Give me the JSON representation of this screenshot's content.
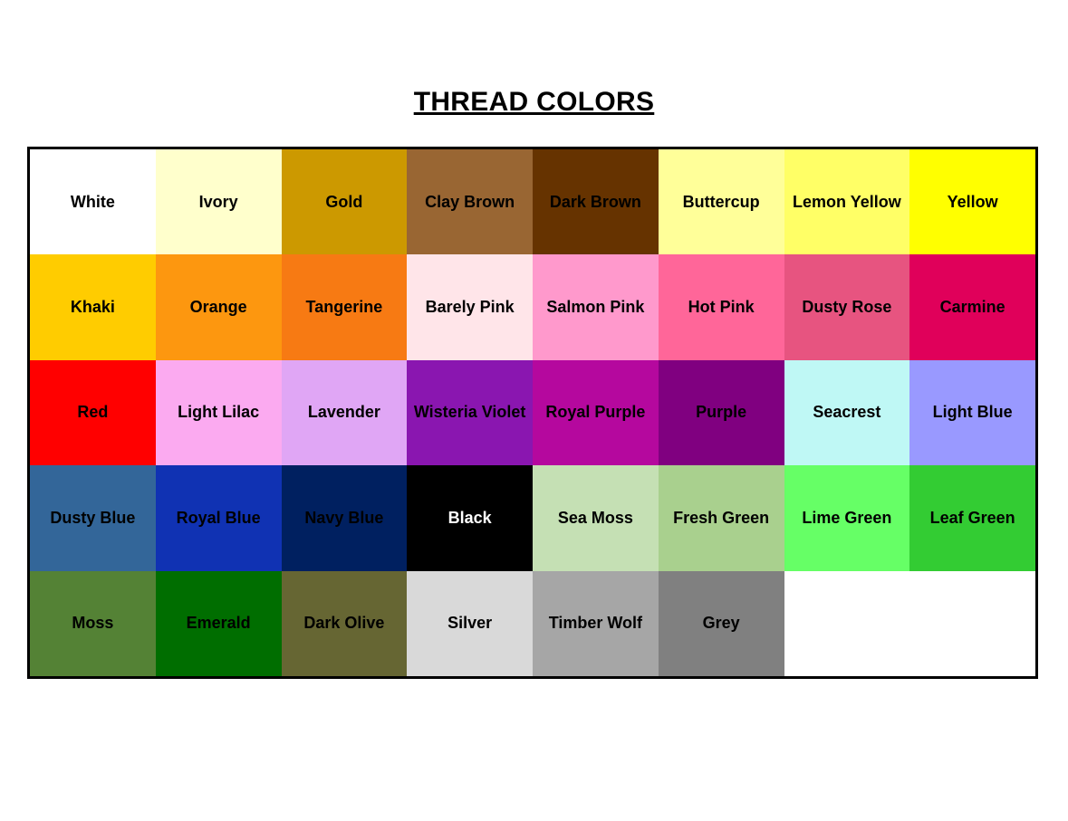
{
  "title": "THREAD COLORS",
  "colors": [
    {
      "name": "White",
      "hex": "#FFFFFF",
      "text": "#000000"
    },
    {
      "name": "Ivory",
      "hex": "#FFFFCC",
      "text": "#000000"
    },
    {
      "name": "Gold",
      "hex": "#CC9900",
      "text": "#000000"
    },
    {
      "name": "Clay Brown",
      "hex": "#996633",
      "text": "#000000"
    },
    {
      "name": "Dark Brown",
      "hex": "#663300",
      "text": "#000000"
    },
    {
      "name": "Buttercup",
      "hex": "#FFFF99",
      "text": "#000000"
    },
    {
      "name": "Lemon Yellow",
      "hex": "#FFFF66",
      "text": "#000000"
    },
    {
      "name": "Yellow",
      "hex": "#FFFF00",
      "text": "#000000"
    },
    {
      "name": "Khaki",
      "hex": "#FFCC00",
      "text": "#000000"
    },
    {
      "name": "Orange",
      "hex": "#FD970F",
      "text": "#000000"
    },
    {
      "name": "Tangerine",
      "hex": "#F77A13",
      "text": "#000000"
    },
    {
      "name": "Barely Pink",
      "hex": "#FFE5E9",
      "text": "#000000"
    },
    {
      "name": "Salmon Pink",
      "hex": "#FF99CC",
      "text": "#000000"
    },
    {
      "name": "Hot Pink",
      "hex": "#FF6699",
      "text": "#000000"
    },
    {
      "name": "Dusty Rose",
      "hex": "#E75480",
      "text": "#000000"
    },
    {
      "name": "Carmine",
      "hex": "#E0005A",
      "text": "#000000"
    },
    {
      "name": "Red",
      "hex": "#FF0000",
      "text": "#000000"
    },
    {
      "name": "Light Lilac",
      "hex": "#FBAAF0",
      "text": "#000000"
    },
    {
      "name": "Lavender",
      "hex": "#E0A6F5",
      "text": "#000000"
    },
    {
      "name": "Wisteria Violet",
      "hex": "#8A16B0",
      "text": "#000000"
    },
    {
      "name": "Royal Purple",
      "hex": "#B5089E",
      "text": "#000000"
    },
    {
      "name": "Purple",
      "hex": "#800080",
      "text": "#000000"
    },
    {
      "name": "Seacrest",
      "hex": "#BFF8F5",
      "text": "#000000"
    },
    {
      "name": "Light Blue",
      "hex": "#9999FF",
      "text": "#000000"
    },
    {
      "name": "Dusty Blue",
      "hex": "#336699",
      "text": "#000000"
    },
    {
      "name": "Royal Blue",
      "hex": "#1032B3",
      "text": "#000000"
    },
    {
      "name": "Navy Blue",
      "hex": "#002060",
      "text": "#000000"
    },
    {
      "name": "Black",
      "hex": "#000000",
      "text": "#FFFFFF"
    },
    {
      "name": "Sea Moss",
      "hex": "#C5E0B4",
      "text": "#000000"
    },
    {
      "name": "Fresh Green",
      "hex": "#A9D08E",
      "text": "#000000"
    },
    {
      "name": "Lime Green",
      "hex": "#66FF66",
      "text": "#000000"
    },
    {
      "name": "Leaf Green",
      "hex": "#33CC33",
      "text": "#000000"
    },
    {
      "name": "Moss",
      "hex": "#548235",
      "text": "#000000"
    },
    {
      "name": "Emerald",
      "hex": "#006E00",
      "text": "#000000"
    },
    {
      "name": "Dark Olive",
      "hex": "#666633",
      "text": "#000000"
    },
    {
      "name": "Silver",
      "hex": "#D9D9D9",
      "text": "#000000"
    },
    {
      "name": "Timber Wolf",
      "hex": "#A6A6A6",
      "text": "#000000"
    },
    {
      "name": "Grey",
      "hex": "#808080",
      "text": "#000000"
    },
    {
      "name": "",
      "hex": "#FFFFFF",
      "text": "#000000"
    },
    {
      "name": "",
      "hex": "#FFFFFF",
      "text": "#000000"
    }
  ]
}
